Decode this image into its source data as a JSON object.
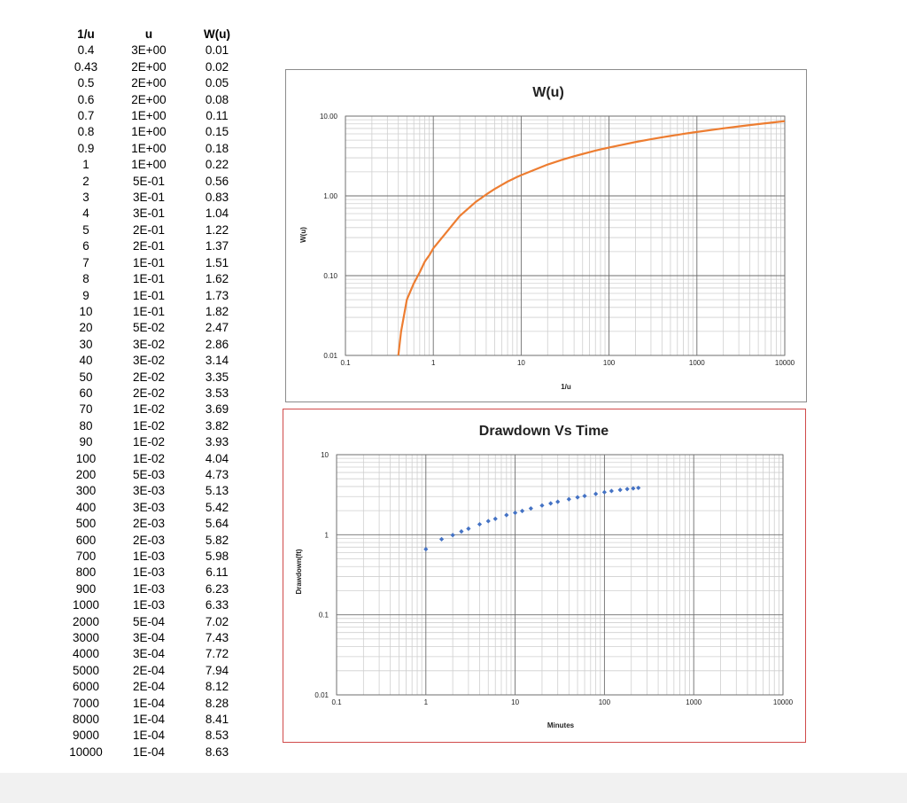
{
  "table": {
    "headers": [
      "1/u",
      "u",
      "W(u)"
    ],
    "rows": [
      [
        "0.4",
        "3E+00",
        "0.01"
      ],
      [
        "0.43",
        "2E+00",
        "0.02"
      ],
      [
        "0.5",
        "2E+00",
        "0.05"
      ],
      [
        "0.6",
        "2E+00",
        "0.08"
      ],
      [
        "0.7",
        "1E+00",
        "0.11"
      ],
      [
        "0.8",
        "1E+00",
        "0.15"
      ],
      [
        "0.9",
        "1E+00",
        "0.18"
      ],
      [
        "1",
        "1E+00",
        "0.22"
      ],
      [
        "2",
        "5E-01",
        "0.56"
      ],
      [
        "3",
        "3E-01",
        "0.83"
      ],
      [
        "4",
        "3E-01",
        "1.04"
      ],
      [
        "5",
        "2E-01",
        "1.22"
      ],
      [
        "6",
        "2E-01",
        "1.37"
      ],
      [
        "7",
        "1E-01",
        "1.51"
      ],
      [
        "8",
        "1E-01",
        "1.62"
      ],
      [
        "9",
        "1E-01",
        "1.73"
      ],
      [
        "10",
        "1E-01",
        "1.82"
      ],
      [
        "20",
        "5E-02",
        "2.47"
      ],
      [
        "30",
        "3E-02",
        "2.86"
      ],
      [
        "40",
        "3E-02",
        "3.14"
      ],
      [
        "50",
        "2E-02",
        "3.35"
      ],
      [
        "60",
        "2E-02",
        "3.53"
      ],
      [
        "70",
        "1E-02",
        "3.69"
      ],
      [
        "80",
        "1E-02",
        "3.82"
      ],
      [
        "90",
        "1E-02",
        "3.93"
      ],
      [
        "100",
        "1E-02",
        "4.04"
      ],
      [
        "200",
        "5E-03",
        "4.73"
      ],
      [
        "300",
        "3E-03",
        "5.13"
      ],
      [
        "400",
        "3E-03",
        "5.42"
      ],
      [
        "500",
        "2E-03",
        "5.64"
      ],
      [
        "600",
        "2E-03",
        "5.82"
      ],
      [
        "700",
        "1E-03",
        "5.98"
      ],
      [
        "800",
        "1E-03",
        "6.11"
      ],
      [
        "900",
        "1E-03",
        "6.23"
      ],
      [
        "1000",
        "1E-03",
        "6.33"
      ],
      [
        "2000",
        "5E-04",
        "7.02"
      ],
      [
        "3000",
        "3E-04",
        "7.43"
      ],
      [
        "4000",
        "3E-04",
        "7.72"
      ],
      [
        "5000",
        "2E-04",
        "7.94"
      ],
      [
        "6000",
        "2E-04",
        "8.12"
      ],
      [
        "7000",
        "1E-04",
        "8.28"
      ],
      [
        "8000",
        "1E-04",
        "8.41"
      ],
      [
        "9000",
        "1E-04",
        "8.53"
      ],
      [
        "10000",
        "1E-04",
        "8.63"
      ]
    ]
  },
  "chart_data": [
    {
      "type": "line",
      "title": "W(u)",
      "xlabel": "1/u",
      "ylabel": "W(u)",
      "x_scale": "log",
      "y_scale": "log",
      "xlim": [
        0.1,
        10000
      ],
      "ylim": [
        0.01,
        10
      ],
      "x_ticks": [
        "0.1",
        "1",
        "10",
        "100",
        "1000",
        "10000"
      ],
      "y_ticks": [
        "0.01",
        "0.10",
        "1.00",
        "10.00"
      ],
      "grid": true,
      "color": "#ed7d31",
      "x": [
        0.4,
        0.43,
        0.5,
        0.6,
        0.7,
        0.8,
        0.9,
        1,
        2,
        3,
        4,
        5,
        6,
        7,
        8,
        9,
        10,
        20,
        30,
        40,
        50,
        60,
        70,
        80,
        90,
        100,
        200,
        300,
        400,
        500,
        600,
        700,
        800,
        900,
        1000,
        2000,
        3000,
        4000,
        5000,
        6000,
        7000,
        8000,
        9000,
        10000
      ],
      "y": [
        0.01,
        0.02,
        0.05,
        0.08,
        0.11,
        0.15,
        0.18,
        0.22,
        0.56,
        0.83,
        1.04,
        1.22,
        1.37,
        1.51,
        1.62,
        1.73,
        1.82,
        2.47,
        2.86,
        3.14,
        3.35,
        3.53,
        3.69,
        3.82,
        3.93,
        4.04,
        4.73,
        5.13,
        5.42,
        5.64,
        5.82,
        5.98,
        6.11,
        6.23,
        6.33,
        7.02,
        7.43,
        7.72,
        7.94,
        8.12,
        8.28,
        8.41,
        8.53,
        8.63
      ]
    },
    {
      "type": "scatter",
      "title": "Drawdown Vs Time",
      "xlabel": "Minutes",
      "ylabel": "Drawdown(ft)",
      "x_scale": "log",
      "y_scale": "log",
      "xlim": [
        0.1,
        10000
      ],
      "ylim": [
        0.01,
        10
      ],
      "x_ticks": [
        "0.1",
        "1",
        "10",
        "100",
        "1000",
        "10000"
      ],
      "y_ticks": [
        "0.01",
        "0.1",
        "1",
        "10"
      ],
      "grid": true,
      "color": "#4472c4",
      "x": [
        1,
        1.5,
        2,
        2.5,
        3,
        4,
        5,
        6,
        8,
        10,
        12,
        15,
        20,
        25,
        30,
        40,
        50,
        60,
        80,
        100,
        120,
        150,
        180,
        210,
        240
      ],
      "y": [
        0.66,
        0.88,
        0.99,
        1.1,
        1.19,
        1.35,
        1.48,
        1.58,
        1.76,
        1.88,
        1.98,
        2.13,
        2.32,
        2.46,
        2.58,
        2.78,
        2.93,
        3.05,
        3.24,
        3.4,
        3.52,
        3.63,
        3.72,
        3.79,
        3.85
      ]
    }
  ]
}
